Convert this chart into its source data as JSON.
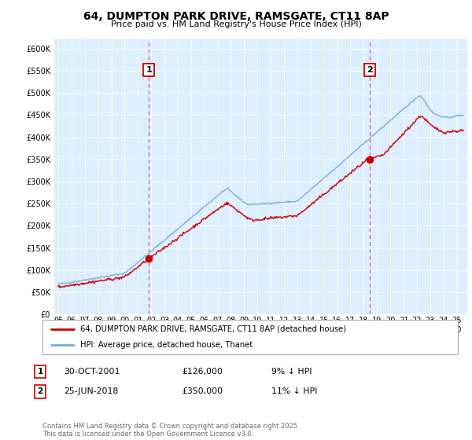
{
  "title": "64, DUMPTON PARK DRIVE, RAMSGATE, CT11 8AP",
  "subtitle": "Price paid vs. HM Land Registry's House Price Index (HPI)",
  "background_color": "#ffffff",
  "plot_bg_color": "#ddeeff",
  "ylim": [
    0,
    620000
  ],
  "yticks": [
    0,
    50000,
    100000,
    150000,
    200000,
    250000,
    300000,
    350000,
    400000,
    450000,
    500000,
    550000,
    600000
  ],
  "xlim_start": 1994.7,
  "xlim_end": 2025.8,
  "xtick_years": [
    1995,
    1996,
    1997,
    1998,
    1999,
    2000,
    2001,
    2002,
    2003,
    2004,
    2005,
    2006,
    2007,
    2008,
    2009,
    2010,
    2011,
    2012,
    2013,
    2014,
    2015,
    2016,
    2017,
    2018,
    2019,
    2020,
    2021,
    2022,
    2023,
    2024,
    2025
  ],
  "purchase1": {
    "date_x": 2001.83,
    "price": 126000,
    "label": "1"
  },
  "purchase2": {
    "date_x": 2018.48,
    "price": 350000,
    "label": "2"
  },
  "legend_entries": [
    {
      "label": "64, DUMPTON PARK DRIVE, RAMSGATE, CT11 8AP (detached house)",
      "color": "#cc0000"
    },
    {
      "label": "HPI: Average price, detached house, Thanet",
      "color": "#7aadd4"
    }
  ],
  "table_rows": [
    {
      "num": "1",
      "date": "30-OCT-2001",
      "price": "£126,000",
      "note": "9% ↓ HPI"
    },
    {
      "num": "2",
      "date": "25-JUN-2018",
      "price": "£350,000",
      "note": "11% ↓ HPI"
    }
  ],
  "footer": "Contains HM Land Registry data © Crown copyright and database right 2025.\nThis data is licensed under the Open Government Licence v3.0.",
  "red_line_color": "#cc0000",
  "blue_line_color": "#7aadd4",
  "vline_color": "#e06070"
}
